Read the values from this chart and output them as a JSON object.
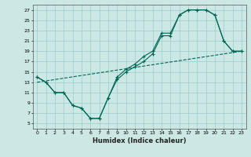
{
  "xlabel": "Humidex (Indice chaleur)",
  "background_color": "#cce8e4",
  "grid_color": "#99cccc",
  "line_color": "#006655",
  "xlim": [
    -0.5,
    23.5
  ],
  "ylim": [
    4,
    28
  ],
  "xticks": [
    0,
    1,
    2,
    3,
    4,
    5,
    6,
    7,
    8,
    9,
    10,
    11,
    12,
    13,
    14,
    15,
    16,
    17,
    18,
    19,
    20,
    21,
    22,
    23
  ],
  "yticks": [
    5,
    7,
    9,
    11,
    13,
    15,
    17,
    19,
    21,
    23,
    25,
    27
  ],
  "line1_x": [
    0,
    1,
    2,
    3,
    4,
    5,
    6,
    7,
    8,
    9,
    10,
    11,
    12,
    13,
    14,
    15,
    16,
    17,
    18,
    19,
    20,
    21,
    22,
    23
  ],
  "line1_y": [
    14,
    13,
    11,
    11,
    8.5,
    8,
    6,
    6,
    10,
    13.5,
    15,
    16,
    17,
    18.5,
    22,
    22,
    26,
    27,
    27,
    27,
    26,
    21,
    19,
    19
  ],
  "line2_x": [
    0,
    1,
    2,
    3,
    4,
    5,
    6,
    7,
    8,
    9,
    10,
    11,
    12,
    13,
    14,
    15,
    16,
    17,
    18,
    19,
    20,
    21,
    22,
    23
  ],
  "line2_y": [
    14,
    13,
    11,
    11,
    8.5,
    8,
    6,
    6,
    10,
    14,
    15.5,
    16.5,
    18,
    19,
    22.5,
    22.5,
    26,
    27,
    27,
    27,
    26,
    21,
    19,
    19
  ],
  "line3_x": [
    0,
    23
  ],
  "line3_y": [
    13,
    19
  ]
}
